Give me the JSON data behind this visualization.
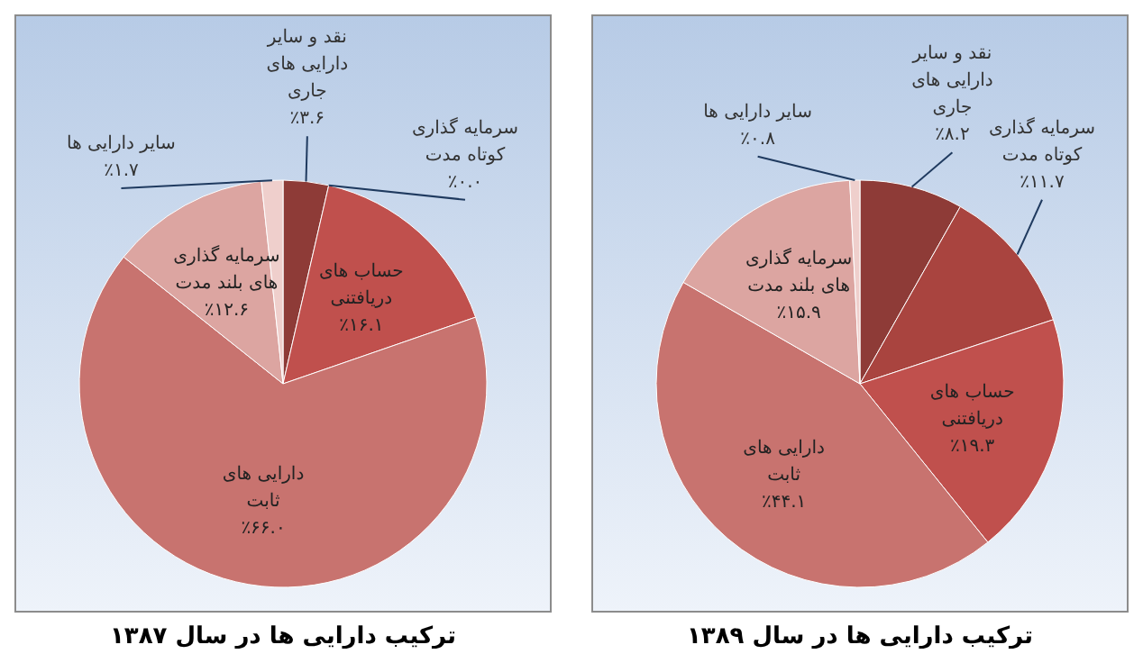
{
  "chart_data": [
    {
      "type": "pie",
      "title": "ترکیب دارایی ها در سال ۱۳۸۷",
      "categories": [
        "نقد و سایر دارایی های جاری",
        "سرمایه گذاری کوتاه مدت",
        "حساب های دریافتنی",
        "دارایی های ثابت",
        "سرمایه گذاری های بلند مدت",
        "سایر دارایی ها"
      ],
      "values": [
        3.6,
        0.0,
        16.1,
        66.0,
        12.6,
        1.7
      ],
      "colors": [
        "#8e3b37",
        "#a9443f",
        "#c0504d",
        "#c8736f",
        "#dca5a1",
        "#efcfcc"
      ],
      "value_labels": [
        "٪۳.۶",
        "٪۰.۰",
        "٪۱۶.۱",
        "٪۶۶.۰",
        "٪۱۲.۶",
        "٪۱.۷"
      ]
    },
    {
      "type": "pie",
      "title": "ترکیب دارایی ها در سال ۱۳۸۹",
      "categories": [
        "نقد و سایر دارایی های جاری",
        "سرمایه گذاری کوتاه مدت",
        "حساب های دریافتنی",
        "دارایی های ثابت",
        "سرمایه گذاری های بلند مدت",
        "سایر دارایی ها"
      ],
      "values": [
        8.2,
        11.7,
        19.3,
        44.1,
        15.9,
        0.8
      ],
      "colors": [
        "#8e3b37",
        "#a9443f",
        "#c0504d",
        "#c8736f",
        "#dca5a1",
        "#efcfcc"
      ],
      "value_labels": [
        "٪۸.۲",
        "٪۱۱.۷",
        "٪۱۹.۳",
        "٪۴۴.۱",
        "٪۱۵.۹",
        "٪۰.۸"
      ]
    }
  ]
}
